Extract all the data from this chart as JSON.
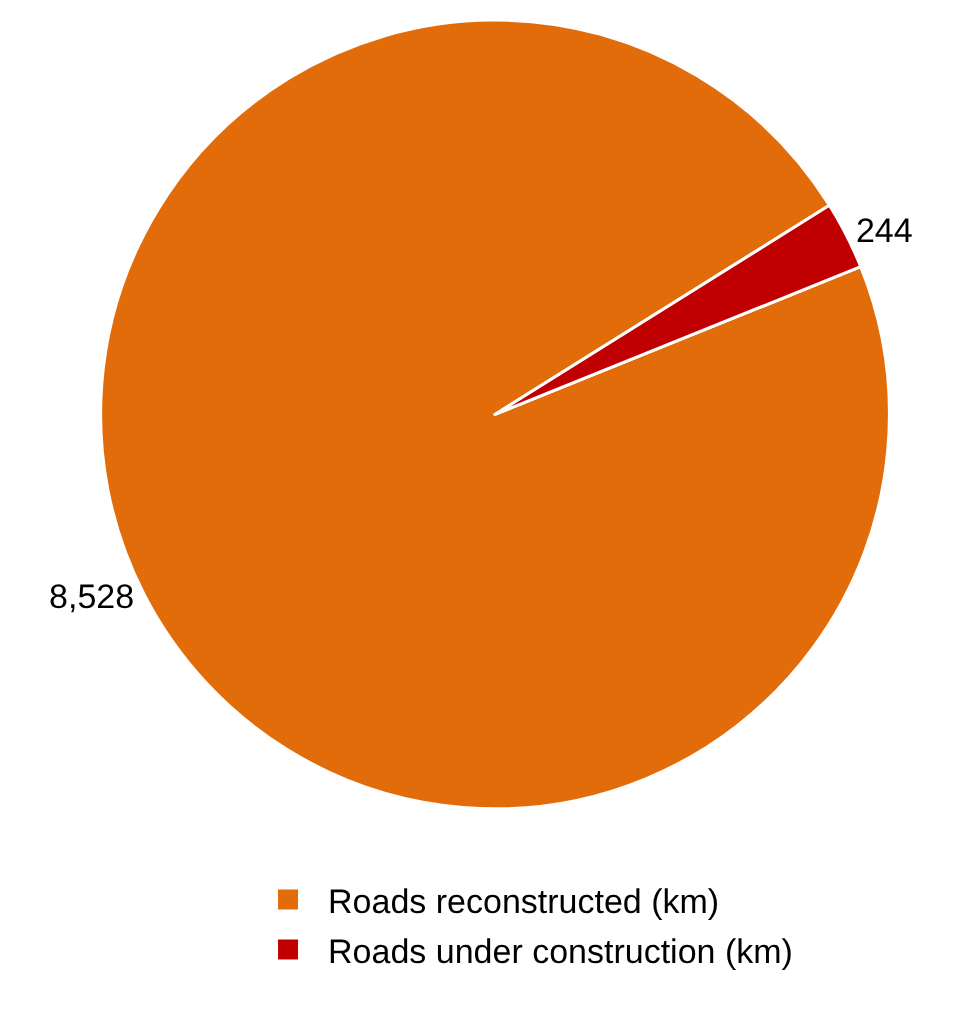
{
  "chart_data": {
    "type": "pie",
    "categories": [
      "Roads reconstructed (km)",
      "Roads under construction (km)"
    ],
    "values": [
      8528,
      244
    ],
    "colors": [
      "#e36c0a",
      "#c00000"
    ],
    "value_labels": [
      "8,528",
      "244"
    ],
    "legend": "bottom"
  }
}
